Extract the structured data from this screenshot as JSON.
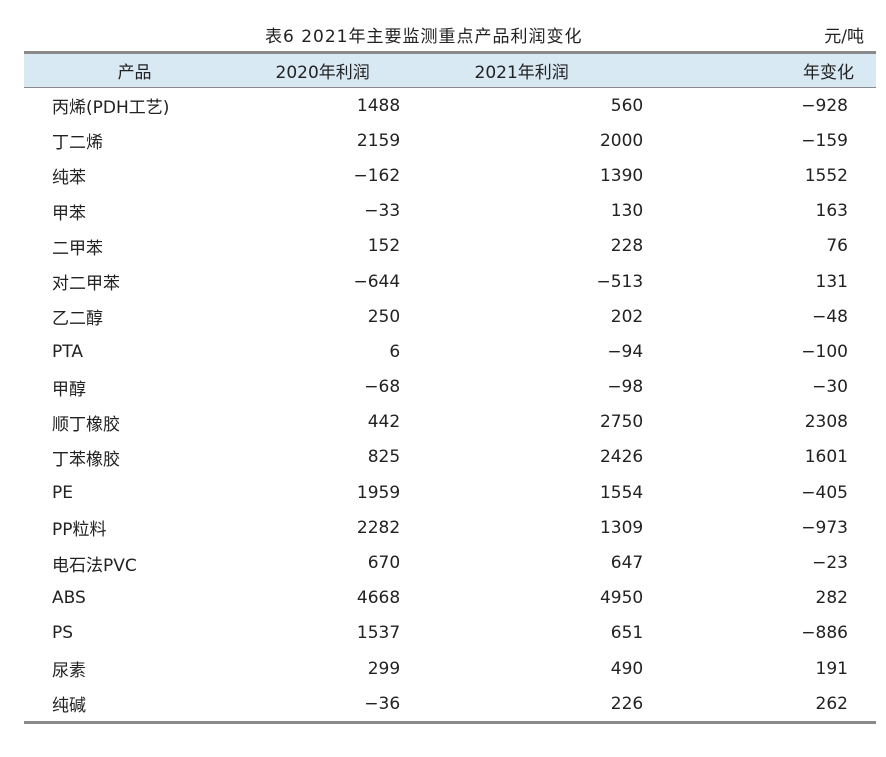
{
  "caption": {
    "title": "表6  2021年主要监测重点产品利润变化",
    "unit": "元/吨"
  },
  "headers": [
    "产品",
    "2020年利润",
    "2021年利润",
    "年变化"
  ],
  "rows": [
    [
      "丙烯(PDH工艺)",
      "1488",
      "560",
      "−928"
    ],
    [
      "丁二烯",
      "2159",
      "2000",
      "−159"
    ],
    [
      "纯苯",
      "−162",
      "1390",
      "1552"
    ],
    [
      "甲苯",
      "−33",
      "130",
      "163"
    ],
    [
      "二甲苯",
      "152",
      "228",
      "76"
    ],
    [
      "对二甲苯",
      "−644",
      "−513",
      "131"
    ],
    [
      "乙二醇",
      "250",
      "202",
      "−48"
    ],
    [
      "PTA",
      "6",
      "−94",
      "−100"
    ],
    [
      "甲醇",
      "−68",
      "−98",
      "−30"
    ],
    [
      "顺丁橡胶",
      "442",
      "2750",
      "2308"
    ],
    [
      "丁苯橡胶",
      "825",
      "2426",
      "1601"
    ],
    [
      "PE",
      "1959",
      "1554",
      "−405"
    ],
    [
      "PP粒料",
      "2282",
      "1309",
      "−973"
    ],
    [
      "电石法PVC",
      "670",
      "647",
      "−23"
    ],
    [
      "ABS",
      "4668",
      "4950",
      "282"
    ],
    [
      "PS",
      "1537",
      "651",
      "−886"
    ],
    [
      "尿素",
      "299",
      "490",
      "191"
    ],
    [
      "纯碱",
      "−36",
      "226",
      "262"
    ]
  ]
}
